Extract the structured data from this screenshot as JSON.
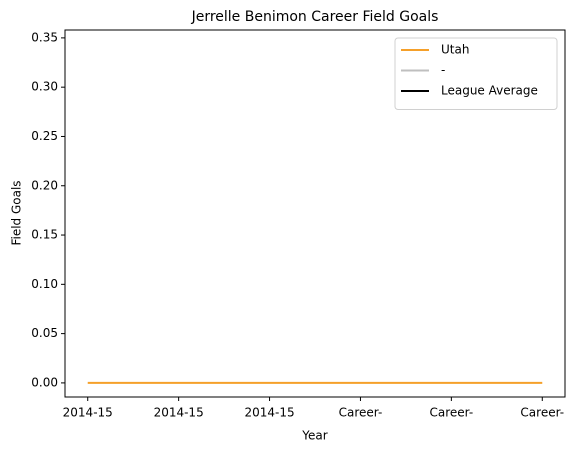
{
  "chart_data": {
    "type": "line",
    "title": "Jerrelle Benimon Career Field Goals",
    "xlabel": "Year",
    "ylabel": "Field Goals",
    "categories": [
      "2014-15",
      "2014-15",
      "2014-15",
      "Career-",
      "Career-",
      "Career-"
    ],
    "series": [
      {
        "name": "Utah",
        "color": "#f5a02a",
        "values": [
          0,
          0,
          0,
          0,
          0,
          0
        ]
      },
      {
        "name": "-",
        "color": "#bfbfbf",
        "values": [
          null,
          null,
          null,
          null,
          null,
          null
        ]
      },
      {
        "name": "League Average",
        "color": "#000000",
        "values": [
          null,
          null,
          null,
          null,
          null,
          null
        ]
      }
    ],
    "ylim": [
      -0.0143,
      0.358
    ],
    "yticks": [
      {
        "value": 0,
        "label": "0.00"
      },
      {
        "value": 0.05,
        "label": "0.05"
      },
      {
        "value": 0.1,
        "label": "0.10"
      },
      {
        "value": 0.15,
        "label": "0.15"
      },
      {
        "value": 0.2,
        "label": "0.20"
      },
      {
        "value": 0.25,
        "label": "0.25"
      },
      {
        "value": 0.3,
        "label": "0.30"
      },
      {
        "value": 0.35,
        "label": "0.35"
      }
    ],
    "grid": false,
    "legend": "upper right"
  }
}
